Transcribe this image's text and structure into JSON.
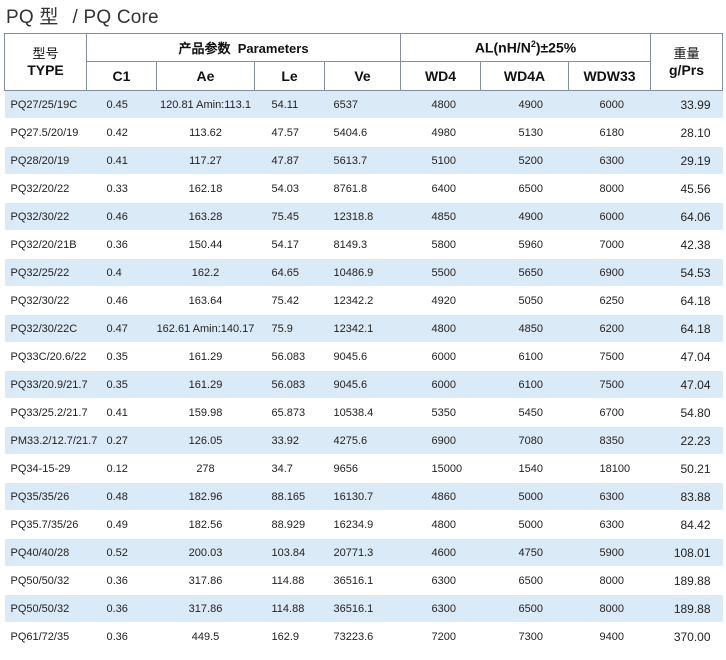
{
  "title": {
    "cn": "PQ 型",
    "en": "/ PQ Core"
  },
  "header": {
    "type_cn": "型号",
    "type_en": "TYPE",
    "params_cn": "产品参数",
    "params_en": "Parameters",
    "al_prefix": "AL(nH/N",
    "al_sup": "2",
    "al_suffix": ")±25%",
    "weight_cn": "重量",
    "weight_unit": "g/Prs",
    "cols": {
      "c1": "C1",
      "ae": "Ae",
      "le": "Le",
      "ve": "Ve",
      "wd4": "WD4",
      "wd4a": "WD4A",
      "wdw33": "WDW33"
    }
  },
  "rows": [
    {
      "type": "PQ27/25/19C",
      "c1": "0.45",
      "ae": "120.81 Amin:113.1",
      "le": "54.11",
      "ve": "6537",
      "wd4": "4800",
      "wd4a": "4900",
      "wdw33": "6000",
      "weight": "33.99"
    },
    {
      "type": "PQ27.5/20/19",
      "c1": "0.42",
      "ae": "113.62",
      "le": "47.57",
      "ve": "5404.6",
      "wd4": "4980",
      "wd4a": "5130",
      "wdw33": "6180",
      "weight": "28.10"
    },
    {
      "type": "PQ28/20/19",
      "c1": "0.41",
      "ae": "117.27",
      "le": "47.87",
      "ve": "5613.7",
      "wd4": "5100",
      "wd4a": "5200",
      "wdw33": "6300",
      "weight": "29.19"
    },
    {
      "type": "PQ32/20/22",
      "c1": "0.33",
      "ae": "162.18",
      "le": "54.03",
      "ve": "8761.8",
      "wd4": "6400",
      "wd4a": "6500",
      "wdw33": "8000",
      "weight": "45.56"
    },
    {
      "type": "PQ32/30/22",
      "c1": "0.46",
      "ae": "163.28",
      "le": "75.45",
      "ve": "12318.8",
      "wd4": "4850",
      "wd4a": "4900",
      "wdw33": "6000",
      "weight": "64.06"
    },
    {
      "type": "PQ32/20/21B",
      "c1": "0.36",
      "ae": "150.44",
      "le": "54.17",
      "ve": "8149.3",
      "wd4": "5800",
      "wd4a": "5960",
      "wdw33": "7000",
      "weight": "42.38"
    },
    {
      "type": "PQ32/25/22",
      "c1": "0.4",
      "ae": "162.2",
      "le": "64.65",
      "ve": "10486.9",
      "wd4": "5500",
      "wd4a": "5650",
      "wdw33": "6900",
      "weight": "54.53"
    },
    {
      "type": "PQ32/30/22",
      "c1": "0.46",
      "ae": "163.64",
      "le": "75.42",
      "ve": "12342.2",
      "wd4": "4920",
      "wd4a": "5050",
      "wdw33": "6250",
      "weight": "64.18"
    },
    {
      "type": "PQ32/30/22C",
      "c1": "0.47",
      "ae": "162.61 Amin:140.17",
      "le": "75.9",
      "ve": "12342.1",
      "wd4": "4800",
      "wd4a": "4850",
      "wdw33": "6200",
      "weight": "64.18"
    },
    {
      "type": "PQ33C/20.6/22",
      "c1": "0.35",
      "ae": "161.29",
      "le": "56.083",
      "ve": "9045.6",
      "wd4": "6000",
      "wd4a": "6100",
      "wdw33": "7500",
      "weight": "47.04"
    },
    {
      "type": "PQ33/20.9/21.7",
      "c1": "0.35",
      "ae": "161.29",
      "le": "56.083",
      "ve": "9045.6",
      "wd4": "6000",
      "wd4a": "6100",
      "wdw33": "7500",
      "weight": "47.04"
    },
    {
      "type": "PQ33/25.2/21.7",
      "c1": "0.41",
      "ae": "159.98",
      "le": "65.873",
      "ve": "10538.4",
      "wd4": "5350",
      "wd4a": "5450",
      "wdw33": "6700",
      "weight": "54.80"
    },
    {
      "type": "PM33.2/12.7/21.7",
      "c1": "0.27",
      "ae": "126.05",
      "le": "33.92",
      "ve": "4275.6",
      "wd4": "6900",
      "wd4a": "7080",
      "wdw33": "8350",
      "weight": "22.23"
    },
    {
      "type": "PQ34-15-29",
      "c1": "0.12",
      "ae": "278",
      "le": "34.7",
      "ve": "9656",
      "wd4": "15000",
      "wd4a": "1540",
      "wdw33": "18100",
      "weight": "50.21"
    },
    {
      "type": "PQ35/35/26",
      "c1": "0.48",
      "ae": "182.96",
      "le": "88.165",
      "ve": "16130.7",
      "wd4": "4860",
      "wd4a": "5000",
      "wdw33": "6300",
      "weight": "83.88"
    },
    {
      "type": "PQ35.7/35/26",
      "c1": "0.49",
      "ae": "182.56",
      "le": "88.929",
      "ve": "16234.9",
      "wd4": "4800",
      "wd4a": "5000",
      "wdw33": "6300",
      "weight": "84.42"
    },
    {
      "type": "PQ40/40/28",
      "c1": "0.52",
      "ae": "200.03",
      "le": "103.84",
      "ve": "20771.3",
      "wd4": "4600",
      "wd4a": "4750",
      "wdw33": "5900",
      "weight": "108.01"
    },
    {
      "type": "PQ50/50/32",
      "c1": "0.36",
      "ae": "317.86",
      "le": "114.88",
      "ve": "36516.1",
      "wd4": "6300",
      "wd4a": "6500",
      "wdw33": "8000",
      "weight": "189.88"
    },
    {
      "type": "PQ50/50/32",
      "c1": "0.36",
      "ae": "317.86",
      "le": "114.88",
      "ve": "36516.1",
      "wd4": "6300",
      "wd4a": "6500",
      "wdw33": "8000",
      "weight": "189.88"
    },
    {
      "type": "PQ61/72/35",
      "c1": "0.36",
      "ae": "449.5",
      "le": "162.9",
      "ve": "73223.6",
      "wd4": "7200",
      "wd4a": "7300",
      "wdw33": "9400",
      "weight": "370.00"
    }
  ]
}
